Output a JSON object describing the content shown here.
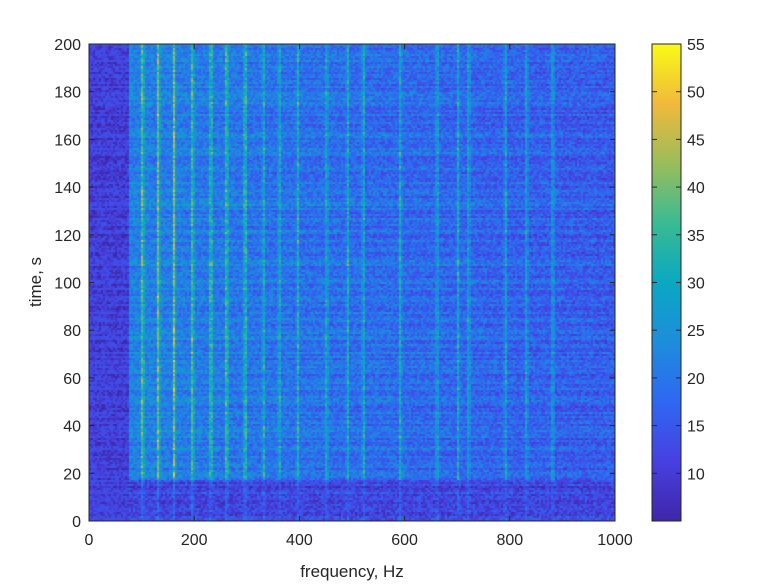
{
  "chart_data": {
    "type": "heatmap",
    "xlabel": "frequency, Hz",
    "ylabel": "time, s",
    "xlim": [
      0,
      1000
    ],
    "ylim": [
      0,
      200
    ],
    "x_ticks": [
      "0",
      "200",
      "400",
      "600",
      "800",
      "1000"
    ],
    "y_ticks": [
      "0",
      "20",
      "40",
      "60",
      "80",
      "100",
      "120",
      "140",
      "160",
      "180",
      "200"
    ],
    "colorbar": {
      "range": [
        5,
        55
      ],
      "ticks": [
        "10",
        "15",
        "20",
        "25",
        "30",
        "35",
        "40",
        "45",
        "50",
        "55"
      ],
      "colormap": "parula"
    },
    "harmonic_lines_hz": [
      100,
      130,
      160,
      195,
      230,
      260,
      295,
      330,
      360,
      395,
      450,
      490,
      520,
      590,
      660,
      700,
      720,
      790,
      830,
      880
    ],
    "value_profile": {
      "low_freq_band_hz": [
        0,
        75
      ],
      "low_freq_level": 9,
      "peak_region_hz": [
        100,
        300
      ],
      "peak_region_level": 35,
      "high_freq_level": 18,
      "quiet_time_band_s": [
        0,
        18
      ],
      "quiet_time_level": 9
    }
  }
}
